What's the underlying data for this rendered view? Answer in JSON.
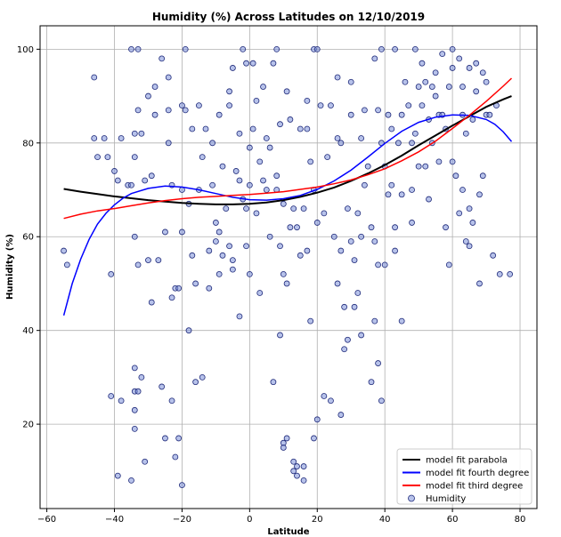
{
  "chart_data": {
    "type": "scatter",
    "title": "Humidity (%) Across Latitudes on 12/10/2019",
    "xlabel": "Latitude",
    "ylabel": "Humidity (%)",
    "xlim": [
      -62,
      85
    ],
    "ylim": [
      2,
      105
    ],
    "xticks": [
      -60,
      -40,
      -20,
      0,
      20,
      40,
      60,
      80
    ],
    "yticks": [
      20,
      40,
      60,
      80,
      100
    ],
    "grid": true,
    "legend_position": "lower-right",
    "colors": {
      "points_fill": "#7b8fd9",
      "points_edge": "#1f2a7a",
      "parabola": "#000000",
      "fourth_degree": "#0000ff",
      "third_degree": "#ff0000",
      "grid": "#b0b0b0"
    },
    "series": [
      {
        "name": "Humidity",
        "kind": "scatter",
        "points": [
          [
            -55,
            57
          ],
          [
            -54,
            54
          ],
          [
            -46,
            94
          ],
          [
            -46,
            81
          ],
          [
            -45,
            77
          ],
          [
            -43,
            81
          ],
          [
            -42,
            77
          ],
          [
            -41,
            52
          ],
          [
            -41,
            26
          ],
          [
            -40,
            74
          ],
          [
            -39,
            9
          ],
          [
            -39,
            72
          ],
          [
            -38,
            25
          ],
          [
            -38,
            81
          ],
          [
            -36,
            71
          ],
          [
            -35,
            8
          ],
          [
            -35,
            100
          ],
          [
            -35,
            71
          ],
          [
            -34,
            19
          ],
          [
            -34,
            23
          ],
          [
            -34,
            27
          ],
          [
            -34,
            32
          ],
          [
            -34,
            60
          ],
          [
            -34,
            77
          ],
          [
            -34,
            82
          ],
          [
            -33,
            100
          ],
          [
            -33,
            27
          ],
          [
            -33,
            54
          ],
          [
            -33,
            87
          ],
          [
            -32,
            30
          ],
          [
            -32,
            82
          ],
          [
            -31,
            12
          ],
          [
            -31,
            72
          ],
          [
            -30,
            90
          ],
          [
            -30,
            55
          ],
          [
            -29,
            73
          ],
          [
            -29,
            46
          ],
          [
            -28,
            92
          ],
          [
            -28,
            86
          ],
          [
            -27,
            55
          ],
          [
            -26,
            28
          ],
          [
            -26,
            98
          ],
          [
            -25,
            17
          ],
          [
            -25,
            61
          ],
          [
            -24,
            80
          ],
          [
            -24,
            87
          ],
          [
            -24,
            94
          ],
          [
            -23,
            47
          ],
          [
            -23,
            25
          ],
          [
            -23,
            71
          ],
          [
            -22,
            13
          ],
          [
            -22,
            49
          ],
          [
            -21,
            49
          ],
          [
            -21,
            17
          ],
          [
            -20,
            7
          ],
          [
            -20,
            88
          ],
          [
            -20,
            61
          ],
          [
            -20,
            70
          ],
          [
            -19,
            100
          ],
          [
            -19,
            87
          ],
          [
            -18,
            40
          ],
          [
            -18,
            67
          ],
          [
            -17,
            83
          ],
          [
            -17,
            56
          ],
          [
            -16,
            50
          ],
          [
            -16,
            29
          ],
          [
            -15,
            88
          ],
          [
            -15,
            70
          ],
          [
            -14,
            30
          ],
          [
            -14,
            77
          ],
          [
            -13,
            83
          ],
          [
            -12,
            49
          ],
          [
            -12,
            57
          ],
          [
            -11,
            71
          ],
          [
            -11,
            80
          ],
          [
            -10,
            63
          ],
          [
            -10,
            59
          ],
          [
            -9,
            61
          ],
          [
            -9,
            86
          ],
          [
            -9,
            52
          ],
          [
            -8,
            75
          ],
          [
            -8,
            56
          ],
          [
            -7,
            66
          ],
          [
            -6,
            88
          ],
          [
            -6,
            91
          ],
          [
            -6,
            58
          ],
          [
            -5,
            55
          ],
          [
            -5,
            53
          ],
          [
            -5,
            96
          ],
          [
            -4,
            74
          ],
          [
            -3,
            82
          ],
          [
            -3,
            72
          ],
          [
            -3,
            43
          ],
          [
            -2,
            100
          ],
          [
            -2,
            68
          ],
          [
            -1,
            97
          ],
          [
            -1,
            58
          ],
          [
            -1,
            66
          ],
          [
            0,
            52
          ],
          [
            0,
            71
          ],
          [
            0,
            79
          ],
          [
            1,
            83
          ],
          [
            1,
            97
          ],
          [
            2,
            89
          ],
          [
            2,
            65
          ],
          [
            3,
            76
          ],
          [
            3,
            48
          ],
          [
            4,
            72
          ],
          [
            4,
            92
          ],
          [
            5,
            81
          ],
          [
            5,
            70
          ],
          [
            6,
            79
          ],
          [
            6,
            60
          ],
          [
            7,
            29
          ],
          [
            7,
            97
          ],
          [
            8,
            73
          ],
          [
            8,
            100
          ],
          [
            8,
            70
          ],
          [
            9,
            84
          ],
          [
            9,
            39
          ],
          [
            9,
            58
          ],
          [
            10,
            16
          ],
          [
            10,
            15
          ],
          [
            10,
            52
          ],
          [
            10,
            67
          ],
          [
            11,
            17
          ],
          [
            11,
            91
          ],
          [
            11,
            50
          ],
          [
            12,
            62
          ],
          [
            12,
            85
          ],
          [
            13,
            66
          ],
          [
            13,
            12
          ],
          [
            13,
            10
          ],
          [
            14,
            11
          ],
          [
            14,
            9
          ],
          [
            14,
            62
          ],
          [
            15,
            56
          ],
          [
            15,
            83
          ],
          [
            16,
            8
          ],
          [
            16,
            11
          ],
          [
            16,
            66
          ],
          [
            17,
            57
          ],
          [
            17,
            89
          ],
          [
            17,
            83
          ],
          [
            18,
            42
          ],
          [
            18,
            76
          ],
          [
            19,
            17
          ],
          [
            19,
            70
          ],
          [
            19,
            100
          ],
          [
            20,
            21
          ],
          [
            20,
            63
          ],
          [
            20,
            100
          ],
          [
            21,
            88
          ],
          [
            22,
            26
          ],
          [
            22,
            65
          ],
          [
            23,
            77
          ],
          [
            24,
            25
          ],
          [
            24,
            88
          ],
          [
            25,
            60
          ],
          [
            26,
            50
          ],
          [
            26,
            94
          ],
          [
            26,
            81
          ],
          [
            27,
            57
          ],
          [
            27,
            22
          ],
          [
            27,
            80
          ],
          [
            28,
            45
          ],
          [
            28,
            36
          ],
          [
            29,
            38
          ],
          [
            29,
            66
          ],
          [
            30,
            59
          ],
          [
            30,
            86
          ],
          [
            30,
            93
          ],
          [
            31,
            45
          ],
          [
            31,
            55
          ],
          [
            32,
            65
          ],
          [
            32,
            48
          ],
          [
            33,
            39
          ],
          [
            33,
            81
          ],
          [
            33,
            60
          ],
          [
            34,
            71
          ],
          [
            34,
            87
          ],
          [
            35,
            75
          ],
          [
            36,
            29
          ],
          [
            36,
            62
          ],
          [
            37,
            59
          ],
          [
            37,
            42
          ],
          [
            37,
            98
          ],
          [
            38,
            33
          ],
          [
            38,
            54
          ],
          [
            38,
            87
          ],
          [
            39,
            100
          ],
          [
            39,
            25
          ],
          [
            39,
            80
          ],
          [
            40,
            75
          ],
          [
            40,
            54
          ],
          [
            41,
            86
          ],
          [
            41,
            69
          ],
          [
            42,
            71
          ],
          [
            42,
            83
          ],
          [
            43,
            62
          ],
          [
            43,
            57
          ],
          [
            43,
            100
          ],
          [
            44,
            80
          ],
          [
            45,
            86
          ],
          [
            45,
            42
          ],
          [
            45,
            69
          ],
          [
            46,
            93
          ],
          [
            47,
            88
          ],
          [
            48,
            80
          ],
          [
            48,
            70
          ],
          [
            48,
            63
          ],
          [
            49,
            100
          ],
          [
            49,
            82
          ],
          [
            50,
            92
          ],
          [
            50,
            75
          ],
          [
            51,
            97
          ],
          [
            51,
            88
          ],
          [
            52,
            93
          ],
          [
            52,
            75
          ],
          [
            53,
            85
          ],
          [
            53,
            68
          ],
          [
            54,
            80
          ],
          [
            54,
            92
          ],
          [
            55,
            90
          ],
          [
            55,
            95
          ],
          [
            56,
            76
          ],
          [
            56,
            86
          ],
          [
            57,
            86
          ],
          [
            57,
            99
          ],
          [
            58,
            62
          ],
          [
            58,
            83
          ],
          [
            59,
            54
          ],
          [
            59,
            92
          ],
          [
            60,
            96
          ],
          [
            60,
            100
          ],
          [
            60,
            76
          ],
          [
            61,
            73
          ],
          [
            62,
            65
          ],
          [
            62,
            98
          ],
          [
            63,
            86
          ],
          [
            63,
            70
          ],
          [
            63,
            92
          ],
          [
            64,
            59
          ],
          [
            64,
            82
          ],
          [
            65,
            58
          ],
          [
            65,
            96
          ],
          [
            65,
            66
          ],
          [
            66,
            85
          ],
          [
            66,
            63
          ],
          [
            67,
            97
          ],
          [
            67,
            91
          ],
          [
            68,
            69
          ],
          [
            68,
            50
          ],
          [
            69,
            95
          ],
          [
            69,
            73
          ],
          [
            70,
            93
          ],
          [
            70,
            86
          ],
          [
            71,
            86
          ],
          [
            72,
            56
          ],
          [
            73,
            88
          ],
          [
            74,
            52
          ],
          [
            77,
            52
          ]
        ]
      },
      {
        "name": "model fit parabola",
        "kind": "curve",
        "color": "#000000",
        "x": [
          -55,
          -50,
          -45,
          -40,
          -35,
          -30,
          -25,
          -20,
          -15,
          -10,
          -5,
          0,
          5,
          10,
          15,
          20,
          25,
          30,
          35,
          40,
          45,
          50,
          55,
          60,
          65,
          70,
          75,
          77.5
        ],
        "y": [
          70.2,
          69.6,
          69.1,
          68.6,
          68.2,
          67.8,
          67.5,
          67.2,
          67.0,
          66.9,
          66.9,
          67.0,
          67.3,
          67.8,
          68.5,
          69.4,
          70.5,
          71.9,
          73.5,
          75.3,
          77.3,
          79.5,
          81.6,
          83.7,
          85.7,
          87.7,
          89.3,
          90.0
        ]
      },
      {
        "name": "model fit fourth degree",
        "kind": "curve",
        "color": "#0000ff",
        "x": [
          -55,
          -52.5,
          -50,
          -47.5,
          -45,
          -42.5,
          -40,
          -37.5,
          -35,
          -30,
          -25,
          -20,
          -15,
          -10,
          -5,
          0,
          5,
          10,
          15,
          20,
          25,
          30,
          35,
          40,
          45,
          50,
          55,
          60,
          65,
          70,
          72.5,
          75,
          77.5
        ],
        "y": [
          43.2,
          50.0,
          55.2,
          59.4,
          62.7,
          65.0,
          66.8,
          68.2,
          69.2,
          70.3,
          70.8,
          70.6,
          70.0,
          69.2,
          68.4,
          67.9,
          67.8,
          68.1,
          68.8,
          70.1,
          71.9,
          74.2,
          77.0,
          79.9,
          82.5,
          84.4,
          85.5,
          86.0,
          85.9,
          85.0,
          84.0,
          82.4,
          80.3
        ]
      },
      {
        "name": "model fit third degree",
        "kind": "curve",
        "color": "#ff0000",
        "x": [
          -55,
          -50,
          -45,
          -40,
          -35,
          -30,
          -25,
          -20,
          -15,
          -10,
          -5,
          0,
          5,
          10,
          15,
          20,
          25,
          30,
          35,
          40,
          45,
          50,
          55,
          60,
          65,
          70,
          75,
          77.5
        ],
        "y": [
          63.9,
          64.8,
          65.5,
          66.0,
          66.6,
          67.2,
          67.7,
          68.1,
          68.4,
          68.6,
          68.8,
          69.0,
          69.3,
          69.6,
          70.1,
          70.6,
          71.3,
          72.1,
          73.2,
          74.5,
          76.2,
          78.1,
          80.4,
          83.1,
          85.9,
          88.9,
          92.1,
          93.8
        ]
      }
    ]
  }
}
